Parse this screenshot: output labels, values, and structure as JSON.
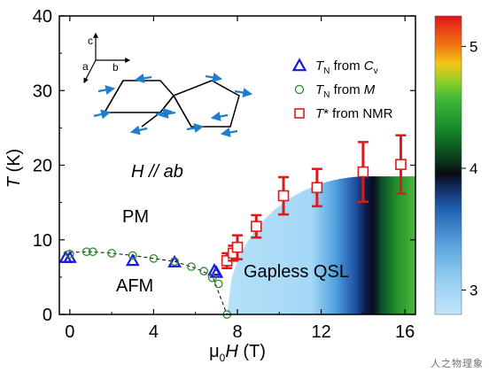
{
  "chart_data": {
    "type": "scatter",
    "xlabel_prefix": "μ",
    "xlabel_sub": "0",
    "xlabel_main": "H",
    "xlabel_unit": " (T)",
    "ylabel": "T",
    "ylabel_unit": " (K)",
    "xlim": [
      -0.5,
      16.5
    ],
    "ylim": [
      0,
      40
    ],
    "xticks": [
      0,
      4,
      8,
      12,
      16
    ],
    "yticks": [
      0,
      10,
      20,
      30,
      40
    ],
    "annotations": {
      "field": "H // ab",
      "pm": "PM",
      "afm": "AFM",
      "qsl": "Gapless QSL",
      "axis_c": "c",
      "axis_a": "a",
      "axis_b": "b"
    },
    "legend": [
      {
        "marker": "triangle",
        "color": "#1a1adc",
        "pre": "T",
        "sub": "N",
        "mid": " from ",
        "post": "C",
        "post_sub": "v"
      },
      {
        "marker": "circle",
        "color": "#2e8b2e",
        "pre": "T",
        "sub": "N",
        "mid": " from ",
        "post": "M",
        "post_sub": ""
      },
      {
        "marker": "square",
        "color": "#dd1a1a",
        "pre": "T",
        "sub": "",
        "mid": "* from NMR",
        "post": "",
        "post_sub": ""
      }
    ],
    "series": [
      {
        "name": "T_N from C_v",
        "marker": "triangle",
        "color": "#1a1adc",
        "x": [
          -0.2,
          0.0,
          3.0,
          5.0,
          6.9,
          7.0
        ],
        "y": [
          7.6,
          7.6,
          7.2,
          7.0,
          5.9,
          5.6
        ]
      },
      {
        "name": "T_N from M",
        "marker": "circle",
        "color": "#2e8b2e",
        "x": [
          0.0,
          0.8,
          1.1,
          2.0,
          3.0,
          4.0,
          5.0,
          5.8,
          6.4,
          6.8,
          7.1,
          7.5
        ],
        "y": [
          8.1,
          8.4,
          8.4,
          8.2,
          7.9,
          7.5,
          7.1,
          6.4,
          5.8,
          4.9,
          4.1,
          0.0
        ]
      },
      {
        "name": "T* from NMR",
        "marker": "square",
        "color": "#dd1a1a",
        "x": [
          7.5,
          7.8,
          8.0,
          8.9,
          10.2,
          11.8,
          14.0,
          15.8
        ],
        "y": [
          7.2,
          8.2,
          9.0,
          11.8,
          15.9,
          17.0,
          19.1,
          20.1
        ],
        "err": [
          1.0,
          1.0,
          1.6,
          1.5,
          2.5,
          2.5,
          4.0,
          3.9
        ]
      }
    ],
    "afm_boundary": {
      "x": [
        -0.3,
        1,
        2,
        3,
        4,
        5,
        6,
        6.8,
        7.5
      ],
      "y": [
        8.3,
        8.4,
        8.2,
        7.9,
        7.5,
        7.1,
        6.2,
        5.2,
        0.0
      ]
    },
    "colorbar": {
      "min": 2.8,
      "max": 5.25,
      "ticks": [
        3,
        4,
        5
      ],
      "colors": [
        "#b5e0f8",
        "#90d0f2",
        "#3d93d5",
        "#1f56a8",
        "#0a0a2e",
        "#0f4a28",
        "#148a27",
        "#3cb533",
        "#8ed02b",
        "#f0b416",
        "#ee5f12",
        "#e3141a"
      ]
    }
  }
}
